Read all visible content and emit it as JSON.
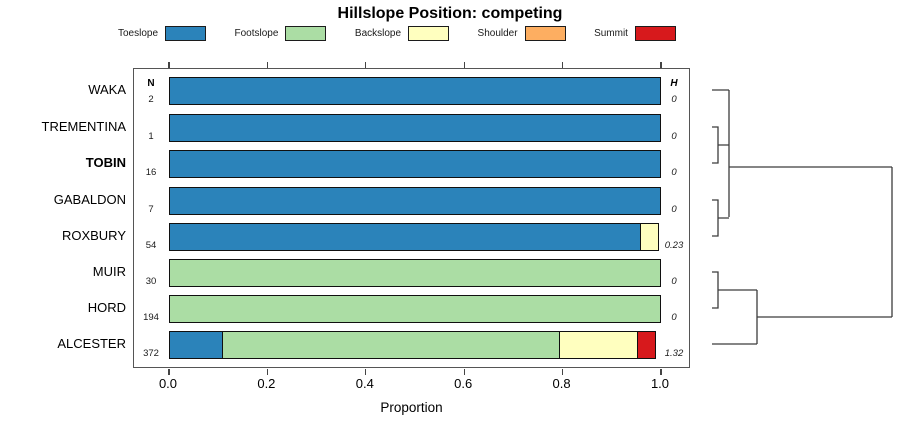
{
  "title": "Hillslope Position: competing",
  "xlabel": "Proportion",
  "columns": {
    "n_header": "N",
    "h_header": "H"
  },
  "colors": {
    "Toeslope": "#2B83BA",
    "Footslope": "#ABDDA4",
    "Backslope": "#FFFFBF",
    "Shoulder": "#FDAE61",
    "Summit": "#D7191C"
  },
  "chart_data": {
    "type": "bar",
    "orientation": "horizontal-stacked",
    "title": "Hillslope Position: competing",
    "xlabel": "Proportion",
    "xlim": [
      0.0,
      1.0
    ],
    "x_ticks": [
      0.0,
      0.2,
      0.4,
      0.6,
      0.8,
      1.0
    ],
    "x_tick_labels": [
      "0.0",
      "0.2",
      "0.4",
      "0.6",
      "0.8",
      "1.0"
    ],
    "legend_entries": [
      "Toeslope",
      "Footslope",
      "Backslope",
      "Shoulder",
      "Summit"
    ],
    "legend_position": "top",
    "grid": false,
    "rows": [
      {
        "name": "WAKA",
        "n": "2",
        "h": "0",
        "bold": false,
        "segments": [
          {
            "category": "Toeslope",
            "value": 1.0
          }
        ]
      },
      {
        "name": "TREMENTINA",
        "n": "1",
        "h": "0",
        "bold": false,
        "segments": [
          {
            "category": "Toeslope",
            "value": 1.0
          }
        ]
      },
      {
        "name": "TOBIN",
        "n": "16",
        "h": "0",
        "bold": true,
        "segments": [
          {
            "category": "Toeslope",
            "value": 1.0
          }
        ]
      },
      {
        "name": "GABALDON",
        "n": "7",
        "h": "0",
        "bold": false,
        "segments": [
          {
            "category": "Toeslope",
            "value": 1.0
          }
        ]
      },
      {
        "name": "ROXBURY",
        "n": "54",
        "h": "0.23",
        "bold": false,
        "segments": [
          {
            "category": "Toeslope",
            "value": 0.96
          },
          {
            "category": "Backslope",
            "value": 0.04
          }
        ]
      },
      {
        "name": "MUIR",
        "n": "30",
        "h": "0",
        "bold": false,
        "segments": [
          {
            "category": "Footslope",
            "value": 1.0
          }
        ]
      },
      {
        "name": "HORD",
        "n": "194",
        "h": "0",
        "bold": false,
        "segments": [
          {
            "category": "Footslope",
            "value": 1.0
          }
        ]
      },
      {
        "name": "ALCESTER",
        "n": "372",
        "h": "1.32",
        "bold": false,
        "segments": [
          {
            "category": "Toeslope",
            "value": 0.11
          },
          {
            "category": "Footslope",
            "value": 0.69
          },
          {
            "category": "Backslope",
            "value": 0.16
          },
          {
            "category": "Summit",
            "value": 0.04
          }
        ]
      }
    ],
    "dendrogram_clusters": [
      [
        "WAKA",
        [
          "TREMENTINA",
          "TOBIN"
        ],
        [
          "GABALDON",
          "ROXBURY"
        ]
      ],
      [
        [
          "MUIR",
          "HORD"
        ],
        "ALCESTER"
      ]
    ]
  }
}
